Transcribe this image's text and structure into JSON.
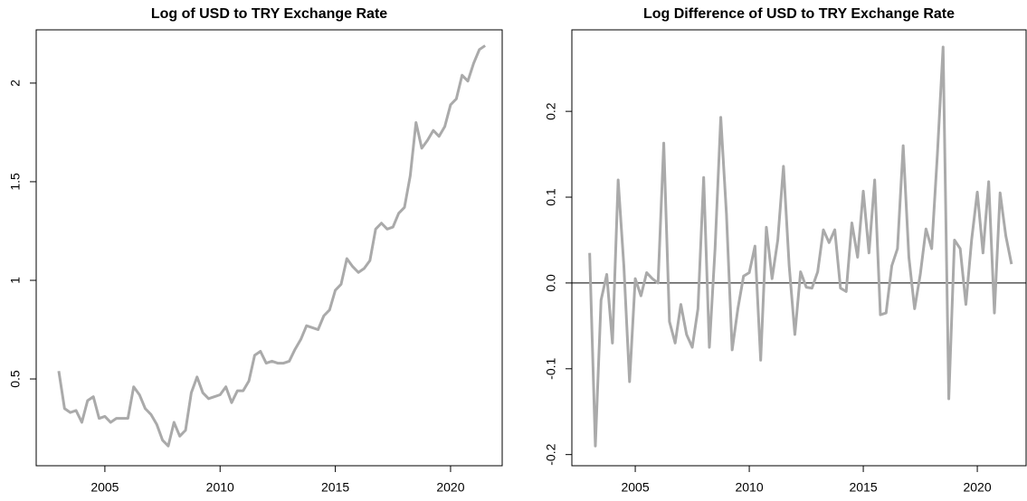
{
  "chart_data": [
    {
      "type": "line",
      "title": "Log of USD to TRY Exchange Rate",
      "color": "#aaaaaa",
      "x": [
        2003,
        2003.25,
        2003.5,
        2003.75,
        2004,
        2004.25,
        2004.5,
        2004.75,
        2005,
        2005.25,
        2005.5,
        2005.75,
        2006,
        2006.25,
        2006.5,
        2006.75,
        2007,
        2007.25,
        2007.5,
        2007.75,
        2008,
        2008.25,
        2008.5,
        2008.75,
        2009,
        2009.25,
        2009.5,
        2009.75,
        2010,
        2010.25,
        2010.5,
        2010.75,
        2011,
        2011.25,
        2011.5,
        2011.75,
        2012,
        2012.25,
        2012.5,
        2012.75,
        2013,
        2013.25,
        2013.5,
        2013.75,
        2014,
        2014.25,
        2014.5,
        2014.75,
        2015,
        2015.25,
        2015.5,
        2015.75,
        2016,
        2016.25,
        2016.5,
        2016.75,
        2017,
        2017.25,
        2017.5,
        2017.75,
        2018,
        2018.25,
        2018.5,
        2018.75,
        2019,
        2019.25,
        2019.5,
        2019.75,
        2020,
        2020.25,
        2020.5,
        2020.75,
        2021,
        2021.25,
        2021.5
      ],
      "values": [
        0.54,
        0.35,
        0.33,
        0.34,
        0.28,
        0.39,
        0.41,
        0.3,
        0.31,
        0.28,
        0.3,
        0.3,
        0.3,
        0.46,
        0.42,
        0.35,
        0.32,
        0.27,
        0.19,
        0.16,
        0.28,
        0.21,
        0.24,
        0.43,
        0.51,
        0.43,
        0.4,
        0.41,
        0.42,
        0.46,
        0.38,
        0.44,
        0.44,
        0.49,
        0.62,
        0.64,
        0.58,
        0.59,
        0.58,
        0.58,
        0.59,
        0.65,
        0.7,
        0.77,
        0.76,
        0.75,
        0.82,
        0.85,
        0.95,
        0.98,
        1.11,
        1.07,
        1.04,
        1.06,
        1.1,
        1.26,
        1.29,
        1.26,
        1.27,
        1.34,
        1.37,
        1.53,
        1.8,
        1.67,
        1.71,
        1.76,
        1.73,
        1.78,
        1.89,
        1.92,
        2.04,
        2.01,
        2.1,
        2.17,
        2.19
      ],
      "xlim": [
        2002.02,
        2022.24
      ],
      "xticks": [
        2005,
        2010,
        2015,
        2020
      ],
      "ylim": [
        0.06,
        2.27
      ],
      "yticks": [
        0.5,
        1.0,
        {
          "value": 1.5,
          "label": "1.5"
        },
        2.0
      ]
    },
    {
      "type": "line",
      "title": "Log Difference of USD to TRY Exchange Rate",
      "color": "#aaaaaa",
      "hline": 0,
      "x": [
        2003,
        2003.25,
        2003.5,
        2003.75,
        2004,
        2004.25,
        2004.5,
        2004.75,
        2005,
        2005.25,
        2005.5,
        2005.75,
        2006,
        2006.25,
        2006.5,
        2006.75,
        2007,
        2007.25,
        2007.5,
        2007.75,
        2008,
        2008.25,
        2008.5,
        2008.75,
        2009,
        2009.25,
        2009.5,
        2009.75,
        2010,
        2010.25,
        2010.5,
        2010.75,
        2011,
        2011.25,
        2011.5,
        2011.75,
        2012,
        2012.25,
        2012.5,
        2012.75,
        2013,
        2013.25,
        2013.5,
        2013.75,
        2014,
        2014.25,
        2014.5,
        2014.75,
        2015,
        2015.25,
        2015.5,
        2015.75,
        2016,
        2016.25,
        2016.5,
        2016.75,
        2017,
        2017.25,
        2017.5,
        2017.75,
        2018,
        2018.25,
        2018.5,
        2018.75,
        2019,
        2019.25,
        2019.5,
        2019.75,
        2020,
        2020.25,
        2020.5,
        2020.75,
        2021,
        2021.25,
        2021.5
      ],
      "values": [
        0.035,
        -0.19,
        -0.02,
        0.01,
        -0.07,
        0.12,
        0.02,
        -0.115,
        0.005,
        -0.015,
        0.012,
        0.005,
        0.0,
        0.163,
        -0.045,
        -0.07,
        -0.025,
        -0.06,
        -0.075,
        -0.03,
        0.123,
        -0.075,
        0.04,
        0.193,
        0.08,
        -0.078,
        -0.03,
        0.008,
        0.012,
        0.043,
        -0.09,
        0.065,
        0.005,
        0.05,
        0.136,
        0.02,
        -0.06,
        0.013,
        -0.005,
        -0.006,
        0.013,
        0.062,
        0.047,
        0.062,
        -0.006,
        -0.01,
        0.07,
        0.03,
        0.107,
        0.035,
        0.12,
        -0.037,
        -0.035,
        0.02,
        0.04,
        0.16,
        0.03,
        -0.03,
        0.01,
        0.063,
        0.04,
        0.15,
        0.275,
        -0.135,
        0.05,
        0.04,
        -0.025,
        0.05,
        0.106,
        0.035,
        0.118,
        -0.035,
        0.105,
        0.055,
        0.022
      ],
      "xlim": [
        2002.22,
        2022.14
      ],
      "xticks": [
        2005,
        2010,
        2015,
        2020
      ],
      "ylim": [
        -0.213,
        0.295
      ],
      "yticks": [
        -0.2,
        -0.1,
        {
          "value": 0,
          "label": "0.0"
        },
        0.1,
        0.2
      ]
    }
  ]
}
